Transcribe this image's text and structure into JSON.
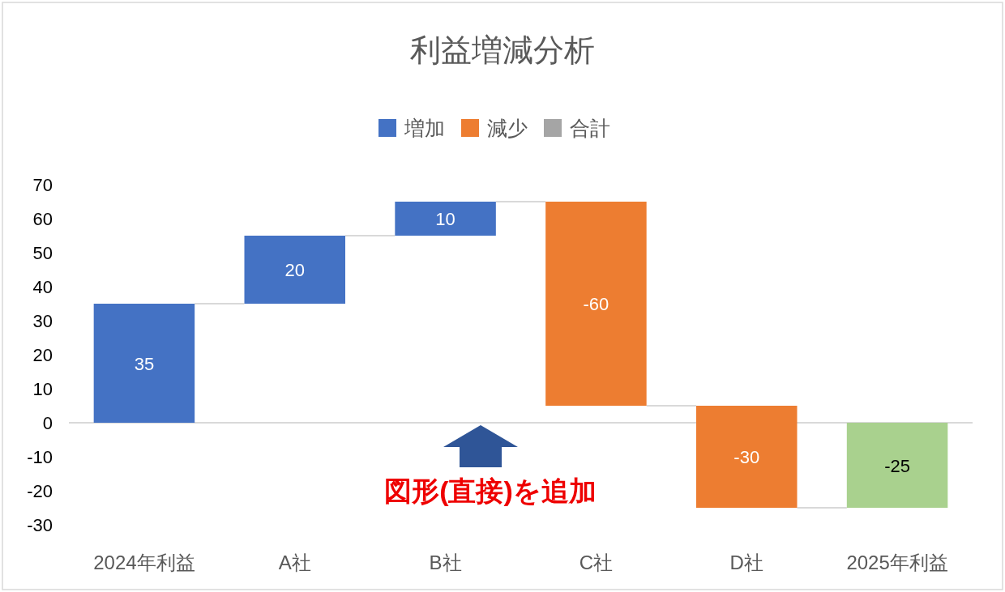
{
  "chart_data": {
    "type": "bar",
    "title": "利益増減分析",
    "categories": [
      "2024年利益",
      "A社",
      "B社",
      "C社",
      "D社",
      "2025年利益"
    ],
    "series": [
      {
        "name": "増加",
        "color": "#4472c4",
        "values": [
          35,
          20,
          10,
          null,
          null,
          null
        ],
        "base": [
          0,
          35,
          55,
          null,
          null,
          null
        ]
      },
      {
        "name": "減少",
        "color": "#ed7d31",
        "values": [
          null,
          null,
          null,
          -60,
          -30,
          null
        ],
        "base": [
          null,
          null,
          null,
          65,
          5,
          null
        ]
      },
      {
        "name": "合計",
        "color": "#a5a5a5",
        "values": [
          null,
          null,
          null,
          null,
          null,
          null
        ]
      },
      {
        "color": "#a9d18e",
        "values": [
          null,
          null,
          null,
          null,
          null,
          -25
        ],
        "base": [
          null,
          null,
          null,
          null,
          null,
          0
        ]
      }
    ],
    "ylim": [
      -30,
      70
    ],
    "yticks": [
      -30,
      -20,
      -10,
      0,
      10,
      20,
      30,
      40,
      50,
      60,
      70
    ],
    "data_labels": true,
    "legend": "top",
    "annotations": [
      "図形(直接)を追加"
    ]
  }
}
